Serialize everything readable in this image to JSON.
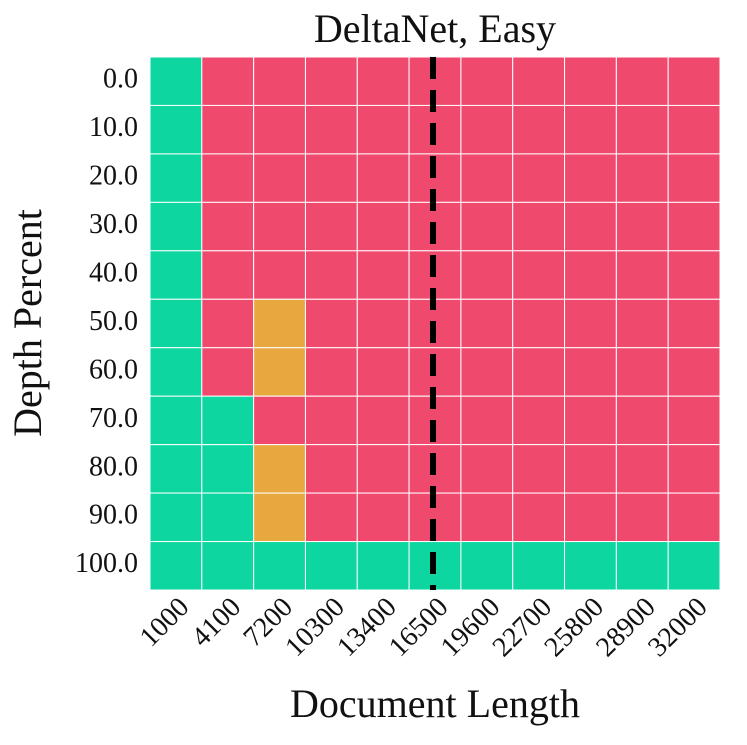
{
  "chart_data": {
    "type": "heatmap",
    "title": "DeltaNet, Easy",
    "xlabel": "Document Length",
    "ylabel": "Depth Percent",
    "categories": [
      "1000",
      "4100",
      "7200",
      "10300",
      "13400",
      "16500",
      "19600",
      "22700",
      "25800",
      "28900",
      "32000"
    ],
    "y_categories": [
      "0.0",
      "10.0",
      "20.0",
      "30.0",
      "40.0",
      "50.0",
      "60.0",
      "70.0",
      "80.0",
      "90.0",
      "100.0"
    ],
    "values": [
      [
        1,
        0,
        0,
        0,
        0,
        0,
        0,
        0,
        0,
        0,
        0
      ],
      [
        1,
        0,
        0,
        0,
        0,
        0,
        0,
        0,
        0,
        0,
        0
      ],
      [
        1,
        0,
        0,
        0,
        0,
        0,
        0,
        0,
        0,
        0,
        0
      ],
      [
        1,
        0,
        0,
        0,
        0,
        0,
        0,
        0,
        0,
        0,
        0
      ],
      [
        1,
        0,
        0,
        0,
        0,
        0,
        0,
        0,
        0,
        0,
        0
      ],
      [
        1,
        0,
        0.5,
        0,
        0,
        0,
        0,
        0,
        0,
        0,
        0
      ],
      [
        1,
        0,
        0.5,
        0,
        0,
        0,
        0,
        0,
        0,
        0,
        0
      ],
      [
        1,
        1,
        0,
        0,
        0,
        0,
        0,
        0,
        0,
        0,
        0
      ],
      [
        1,
        1,
        0.5,
        0,
        0,
        0,
        0,
        0,
        0,
        0,
        0
      ],
      [
        1,
        1,
        0.5,
        0,
        0,
        0,
        0,
        0,
        0,
        0,
        0
      ],
      [
        1,
        1,
        1,
        1,
        1,
        1,
        1,
        1,
        1,
        1,
        1
      ]
    ],
    "vlim": [
      0,
      1
    ],
    "cmap": {
      "low": "#ef4a6e",
      "mid": "#e8a840",
      "high": "#0dd6a0"
    },
    "vline": 16500
  }
}
